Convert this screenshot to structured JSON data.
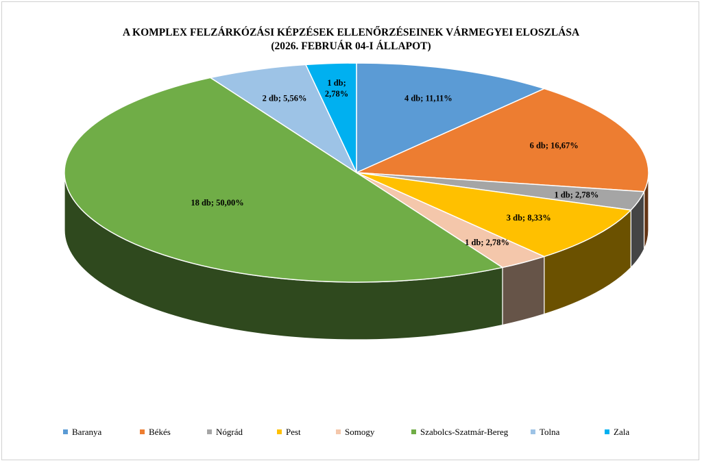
{
  "chart_data": {
    "type": "pie",
    "title": "A KOMPLEX FELZÁRKÓZÁSI  KÉPZÉSEK ELLENŐRZÉSEINEK VÁRMEGYEI ELOSZLÁSA",
    "subtitle": "(2026. FEBRUÁR 04-I ÁLLAPOT)",
    "three_d": true,
    "legend_position": "bottom",
    "slices": [
      {
        "name": "Baranya",
        "value": 4,
        "label": "4 db; 11,11%",
        "color": "#5B9BD5"
      },
      {
        "name": "Békés",
        "value": 6,
        "label": "6 db; 16,67%",
        "color": "#ED7D31"
      },
      {
        "name": "Nógrád",
        "value": 1,
        "label": "1 db; 2,78%",
        "color": "#A5A5A5"
      },
      {
        "name": "Pest",
        "value": 3,
        "label": "3 db; 8,33%",
        "color": "#FFC000"
      },
      {
        "name": "Somogy",
        "value": 1,
        "label": "1 db; 2,78%",
        "color": "#F4C7AB"
      },
      {
        "name": "Szabolcs-Szatmár-Bereg",
        "value": 18,
        "label": "18 db; 50,00%",
        "color": "#70AD47"
      },
      {
        "name": "Tolna",
        "value": 2,
        "label": "2 db; 5,56%",
        "color": "#9DC3E6"
      },
      {
        "name": "Zala",
        "value": 1,
        "label": "1 db; 2,78%",
        "color": "#00B0F0"
      }
    ]
  }
}
